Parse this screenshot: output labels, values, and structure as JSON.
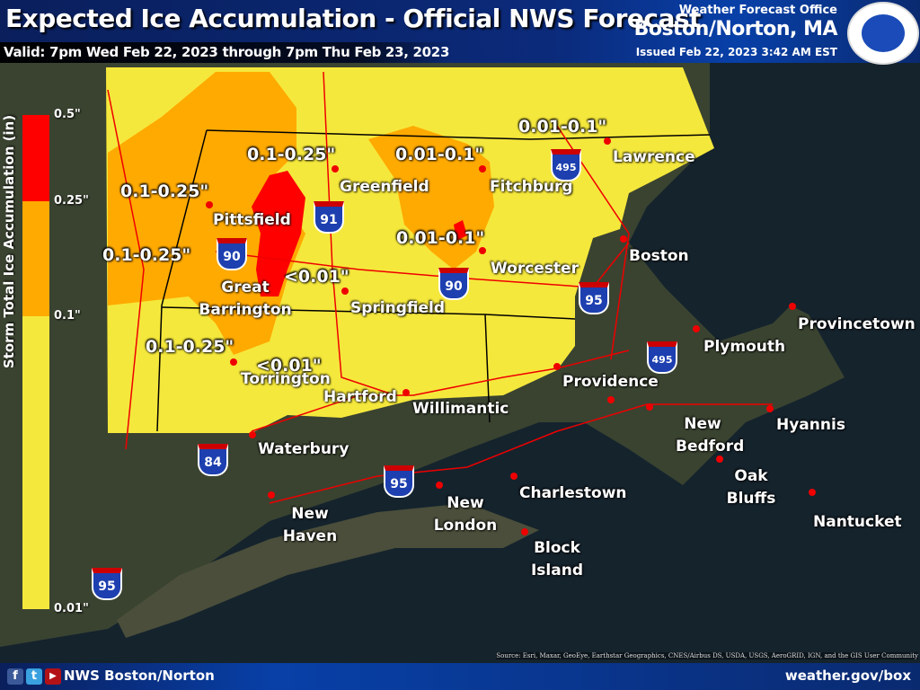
{
  "header": {
    "title": "Expected Ice Accumulation - Official NWS Forecast",
    "valid": "Valid: 7pm Wed Feb 22, 2023 through 7pm Thu Feb 23, 2023",
    "wfo_label": "Weather Forecast Office",
    "office": "Boston/Norton, MA",
    "issued": "Issued Feb 22, 2023 3:42 AM EST",
    "logo_text": "NATIONAL WEATHER SERVICE"
  },
  "legend": {
    "title": "Storm Total Ice Accumulation (in)",
    "ticks": [
      "0.5\"",
      "0.25\"",
      "0.1\"",
      "0.01\""
    ],
    "colors": {
      "0.25-0.5": "#ff0000",
      "0.1-0.25": "#ffaa00",
      "0.01-0.1": "#f5e83c"
    }
  },
  "amounts": [
    "0.01-0.1\"",
    "0.1-0.25\"",
    "0.01-0.1\"",
    "0.1-0.25\"",
    "0.1-0.25\"",
    "<0.01\"",
    "0.01-0.1\"",
    "0.1-0.25\"",
    "<0.01\""
  ],
  "cities": [
    "Lawrence",
    "Greenfield",
    "Fitchburg",
    "Pittsfield",
    "Boston",
    "Worcester",
    "Great Barrington",
    "Springfield",
    "Provincetown",
    "Plymouth",
    "Torrington",
    "Providence",
    "Hartford",
    "Willimantic",
    "New Bedford",
    "Hyannis",
    "Waterbury",
    "Oak Bluffs",
    "Charlestown",
    "New Haven",
    "New London",
    "Nantucket",
    "Block Island"
  ],
  "highways": [
    "495",
    "91",
    "90",
    "90",
    "95",
    "495",
    "84",
    "95",
    "95"
  ],
  "source": "Source: Esri, Maxar, GeoEye, Earthstar Geographics, CNES/Airbus DS, USDA, USGS, AeroGRID, IGN, and the GIS User Community",
  "footer": {
    "social": [
      "f",
      "t",
      "▶"
    ],
    "name": "NWS Boston/Norton",
    "url": "weather.gov/box"
  }
}
